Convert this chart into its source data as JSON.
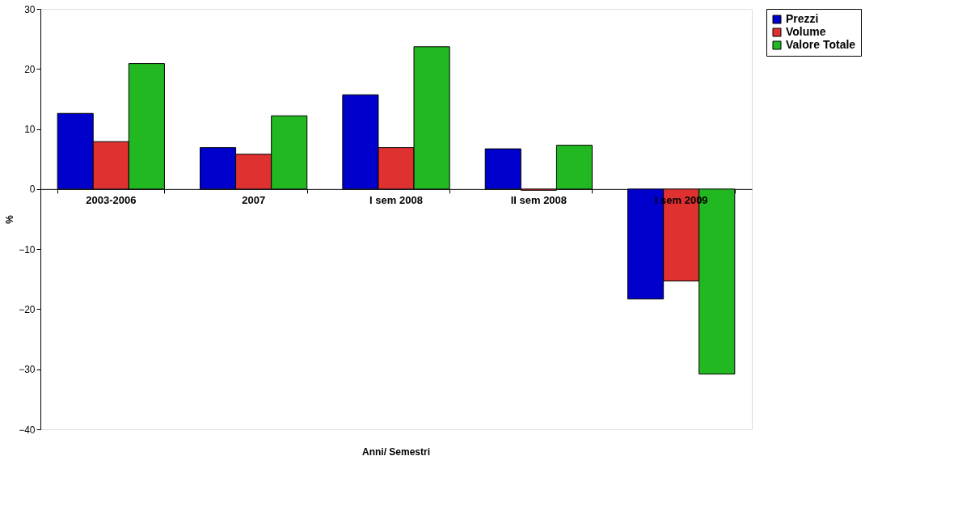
{
  "chart_data": {
    "type": "bar",
    "xlabel": "Anni/ Semestri",
    "ylabel": "%",
    "categories": [
      "2003-2006",
      "2007",
      "I sem  2008",
      "II sem 2008",
      "I sem 2009"
    ],
    "series": [
      {
        "name": "Prezzi",
        "color": "#0000cc",
        "values": [
          12.6,
          6.9,
          15.7,
          6.7,
          -18.3
        ]
      },
      {
        "name": "Volume",
        "color": "#e03131",
        "values": [
          7.9,
          5.8,
          6.9,
          -0.2,
          -15.3
        ]
      },
      {
        "name": "Valore Totale",
        "color": "#21b821",
        "values": [
          20.9,
          12.2,
          23.7,
          7.3,
          -30.8
        ]
      }
    ],
    "ylim": [
      -40,
      30
    ],
    "yticks": [
      -40,
      -30,
      -20,
      -10,
      0,
      10,
      20,
      30
    ],
    "grid": false,
    "legend": "right"
  }
}
